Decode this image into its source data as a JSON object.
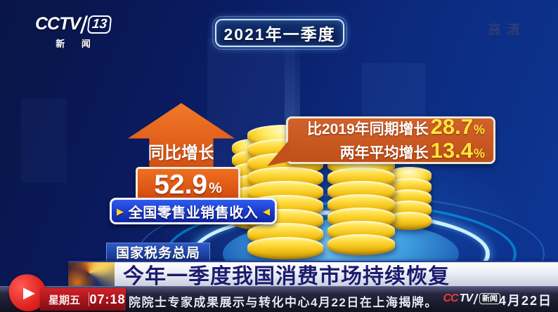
{
  "channel": {
    "cctv": "CCTV",
    "number": "13",
    "subtitle": "新 闻"
  },
  "watermark": "高清",
  "period_badge": "2021年一季度",
  "infographic": {
    "metric_label": "全国零售业销售收入",
    "yoy": {
      "label": "同比增长",
      "value": "52.9",
      "unit": "%"
    },
    "comparisons": [
      {
        "label": "比2019年同期增长",
        "value": "28.7",
        "unit": "%"
      },
      {
        "label": "两年平均增长",
        "value": "13.4",
        "unit": "%"
      }
    ]
  },
  "source_tag": "国家税务总局",
  "headline": "今年一季度我国消费市场持续恢复",
  "ticker": {
    "weekday": "星期五",
    "time": "07:18",
    "text": "院院士专家成果展示与转化中心4月22日在上海揭牌。",
    "play_icon": "▶",
    "logo_cc": "CC",
    "logo_tv": "TV",
    "logo_news": "新闻",
    "date": "4月22日"
  },
  "pill_arrows": {
    "left": "▶",
    "right": "◀"
  },
  "colors": {
    "accent_orange": "#e2601c",
    "highlight_yellow": "#ffe43c",
    "pill_blue": "#1a38c8",
    "coin_gold": "#f7c81e",
    "ticker_red": "#d42028",
    "background_navy": "#0a1a5e"
  },
  "chart_data": {
    "type": "table",
    "title": "2021年一季度 全国零售业销售收入",
    "source": "国家税务总局",
    "metrics": [
      {
        "label": "同比增长",
        "value": 52.9,
        "unit": "%"
      },
      {
        "label": "比2019年同期增长",
        "value": 28.7,
        "unit": "%"
      },
      {
        "label": "两年平均增长",
        "value": 13.4,
        "unit": "%"
      }
    ]
  }
}
